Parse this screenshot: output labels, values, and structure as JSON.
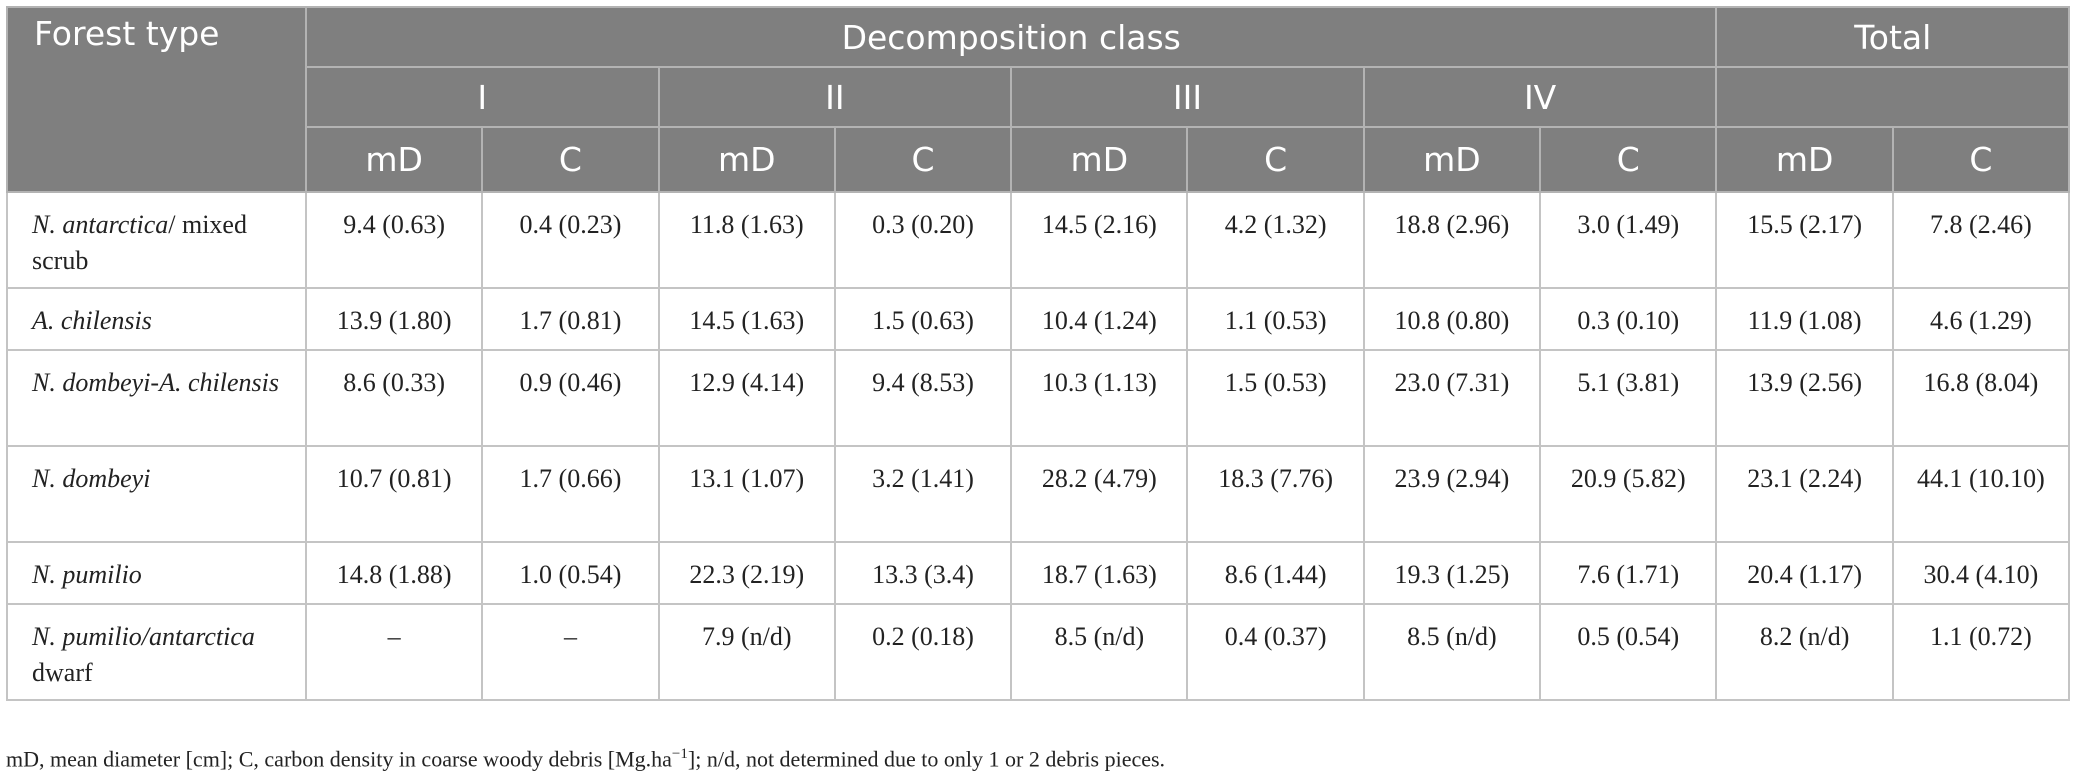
{
  "header": {
    "forest_type": "Forest type",
    "decomposition_class": "Decomposition class",
    "total": "Total",
    "classes": [
      "I",
      "II",
      "III",
      "IV"
    ],
    "md": "mD",
    "c": "C"
  },
  "rows": [
    {
      "name_italic": "N. antarctica",
      "name_rest": "/ mixed scrub",
      "values": [
        "9.4 (0.63)",
        "0.4 (0.23)",
        "11.8 (1.63)",
        "0.3 (0.20)",
        "14.5 (2.16)",
        "4.2 (1.32)",
        "18.8 (2.96)",
        "3.0 (1.49)",
        "15.5 (2.17)",
        "7.8 (2.46)"
      ]
    },
    {
      "name_italic": "A. chilensis",
      "name_rest": "",
      "values": [
        "13.9 (1.80)",
        "1.7 (0.81)",
        "14.5 (1.63)",
        "1.5 (0.63)",
        "10.4 (1.24)",
        "1.1 (0.53)",
        "10.8 (0.80)",
        "0.3 (0.10)",
        "11.9 (1.08)",
        "4.6 (1.29)"
      ]
    },
    {
      "name_italic": "N. dombeyi-A. chilensis",
      "name_rest": "",
      "values": [
        "8.6 (0.33)",
        "0.9 (0.46)",
        "12.9 (4.14)",
        "9.4 (8.53)",
        "10.3 (1.13)",
        "1.5 (0.53)",
        "23.0 (7.31)",
        "5.1 (3.81)",
        "13.9 (2.56)",
        "16.8 (8.04)"
      ]
    },
    {
      "name_italic": "N. dombeyi",
      "name_rest": "",
      "values": [
        "10.7 (0.81)",
        "1.7 (0.66)",
        "13.1 (1.07)",
        "3.2 (1.41)",
        "28.2 (4.79)",
        "18.3 (7.76)",
        "23.9 (2.94)",
        "20.9 (5.82)",
        "23.1 (2.24)",
        "44.1 (10.10)"
      ]
    },
    {
      "name_italic": "N. pumilio",
      "name_rest": "",
      "values": [
        "14.8 (1.88)",
        "1.0 (0.54)",
        "22.3 (2.19)",
        "13.3 (3.4)",
        "18.7 (1.63)",
        "8.6 (1.44)",
        "19.3 (1.25)",
        "7.6 (1.71)",
        "20.4 (1.17)",
        "30.4 (4.10)"
      ]
    },
    {
      "name_italic": "N. pumilio/antarctica",
      "name_rest": " dwarf",
      "values": [
        "–",
        "–",
        "7.9 (n/d)",
        "0.2 (0.18)",
        "8.5 (n/d)",
        "0.4 (0.37)",
        "8.5 (n/d)",
        "0.5 (0.54)",
        "8.2 (n/d)",
        "1.1 (0.72)"
      ]
    }
  ],
  "footnote": {
    "text_before": "mD, mean diameter [cm]; C, carbon density in coarse woody debris [Mg.ha",
    "superscript": "−1",
    "text_after": "]; n/d, not determined due to only 1 or 2 debris pieces."
  }
}
